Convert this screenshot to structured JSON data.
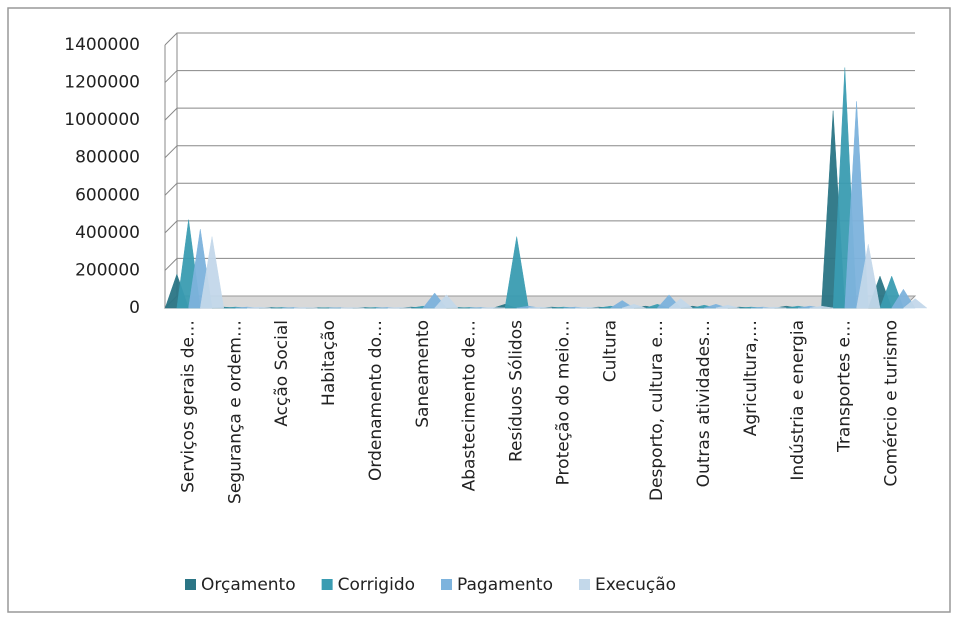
{
  "chart_data": {
    "type": "pyramid",
    "categories": [
      "Serviços gerais de…",
      "Segurança e ordem…",
      "Acção Social",
      "Habitação",
      "Ordenamento do…",
      "Saneamento",
      "Abastecimento de…",
      "Resíduos Sólidos",
      "Proteção do meio…",
      "Cultura",
      "Desporto, cultura e…",
      "Outras atividades…",
      "Agricultura,…",
      "Indústria e energia",
      "Transportes e…",
      "Comércio e turismo"
    ],
    "series": [
      {
        "name": "Orçamento",
        "color": "#2b7585",
        "values": [
          180000,
          5000,
          3000,
          2000,
          3000,
          5000,
          3000,
          20000,
          5000,
          5000,
          10000,
          10000,
          5000,
          10000,
          1050000,
          170000
        ]
      },
      {
        "name": "Corrigido",
        "color": "#3a9cb2",
        "values": [
          470000,
          5000,
          3000,
          2000,
          3000,
          10000,
          3000,
          380000,
          5000,
          10000,
          20000,
          15000,
          5000,
          10000,
          1280000,
          170000
        ]
      },
      {
        "name": "Pagamento",
        "color": "#7db3dd",
        "values": [
          420000,
          5000,
          3000,
          2000,
          3000,
          80000,
          3000,
          10000,
          5000,
          40000,
          70000,
          20000,
          5000,
          10000,
          1100000,
          100000
        ]
      },
      {
        "name": "Execução",
        "color": "#c3d8ea",
        "values": [
          380000,
          5000,
          3000,
          2000,
          3000,
          70000,
          3000,
          5000,
          5000,
          20000,
          50000,
          15000,
          5000,
          10000,
          340000,
          50000
        ]
      }
    ],
    "ylim": [
      0,
      1400000
    ],
    "yticks": [
      0,
      200000,
      400000,
      600000,
      800000,
      1000000,
      1200000,
      1400000
    ],
    "grid": true,
    "legend": "bottom"
  }
}
